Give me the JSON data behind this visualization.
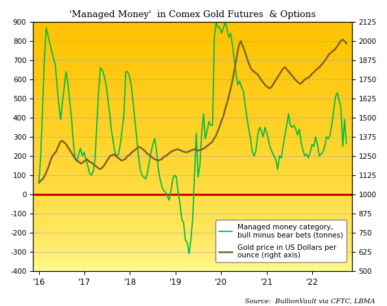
{
  "title": "'Managed Money'  in Comex Gold Futures  & Options",
  "source_text": "Source:  BullionVault via CFTC, LBMA",
  "left_ylim": [
    -400,
    900
  ],
  "right_ylim": [
    500,
    2125
  ],
  "left_yticks": [
    -400,
    -300,
    -200,
    -100,
    0,
    100,
    200,
    300,
    400,
    500,
    600,
    700,
    800,
    900
  ],
  "right_yticks": [
    500,
    625,
    750,
    875,
    1000,
    1125,
    1250,
    1375,
    1500,
    1625,
    1750,
    1875,
    2000,
    2125
  ],
  "xtick_labels": [
    "'16",
    "'17",
    "'18",
    "'19",
    "'20",
    "'21",
    "'22"
  ],
  "background_top": "#FFC200",
  "background_bottom": "#FFFF99",
  "zero_line_color": "#CC0000",
  "net_long_color": "#00BB44",
  "gold_price_color": "#7B6328",
  "net_long_linewidth": 1.3,
  "gold_price_linewidth": 1.8,
  "legend_label_net": "Managed money category,\nbull minus bear bets (tonnes)",
  "legend_label_gold": "Gold price in US Dollars per\nounce (right axis)",
  "net_long_data": [
    70,
    200,
    450,
    700,
    870,
    830,
    790,
    750,
    710,
    680,
    570,
    470,
    390,
    480,
    560,
    640,
    580,
    490,
    400,
    270,
    190,
    170,
    210,
    240,
    200,
    220,
    180,
    150,
    110,
    100,
    120,
    180,
    360,
    540,
    660,
    650,
    620,
    580,
    510,
    430,
    340,
    280,
    220,
    200,
    210,
    260,
    340,
    410,
    640,
    640,
    620,
    570,
    490,
    390,
    300,
    200,
    130,
    100,
    90,
    80,
    110,
    170,
    220,
    260,
    290,
    230,
    130,
    80,
    40,
    20,
    10,
    -10,
    -30,
    20,
    80,
    100,
    90,
    10,
    -50,
    -130,
    -150,
    -240,
    -250,
    -310,
    -240,
    -130,
    100,
    320,
    90,
    150,
    320,
    420,
    290,
    330,
    380,
    360,
    360,
    820,
    900,
    870,
    870,
    840,
    870,
    900,
    860,
    820,
    840,
    780,
    700,
    630,
    570,
    590,
    560,
    540,
    470,
    400,
    340,
    290,
    220,
    200,
    230,
    310,
    350,
    330,
    300,
    350,
    320,
    280,
    240,
    220,
    200,
    180,
    130,
    200,
    190,
    250,
    310,
    360,
    420,
    360,
    350,
    360,
    340,
    310,
    340,
    270,
    230,
    200,
    210,
    190,
    220,
    260,
    250,
    300,
    260,
    200,
    210,
    220,
    250,
    300,
    290,
    310,
    370,
    440,
    510,
    530,
    490,
    450,
    250,
    390,
    265
  ],
  "gold_price_data": [
    1075,
    1090,
    1100,
    1120,
    1150,
    1180,
    1220,
    1250,
    1265,
    1280,
    1310,
    1340,
    1350,
    1340,
    1330,
    1310,
    1290,
    1270,
    1250,
    1230,
    1220,
    1210,
    1200,
    1210,
    1220,
    1230,
    1215,
    1210,
    1200,
    1190,
    1180,
    1170,
    1165,
    1175,
    1190,
    1210,
    1230,
    1250,
    1255,
    1260,
    1250,
    1240,
    1230,
    1220,
    1225,
    1230,
    1250,
    1255,
    1270,
    1280,
    1290,
    1300,
    1310,
    1305,
    1295,
    1285,
    1270,
    1260,
    1250,
    1240,
    1230,
    1225,
    1220,
    1225,
    1230,
    1245,
    1250,
    1260,
    1270,
    1280,
    1285,
    1290,
    1295,
    1290,
    1285,
    1280,
    1275,
    1275,
    1280,
    1285,
    1290,
    1295,
    1290,
    1285,
    1290,
    1295,
    1300,
    1310,
    1320,
    1330,
    1340,
    1360,
    1380,
    1410,
    1440,
    1480,
    1510,
    1560,
    1600,
    1650,
    1700,
    1760,
    1830,
    1900,
    1970,
    2000,
    1970,
    1940,
    1900,
    1860,
    1830,
    1810,
    1800,
    1790,
    1780,
    1760,
    1740,
    1725,
    1710,
    1700,
    1690,
    1700,
    1720,
    1740,
    1760,
    1780,
    1800,
    1820,
    1830,
    1815,
    1800,
    1785,
    1770,
    1755,
    1740,
    1730,
    1720,
    1730,
    1745,
    1755,
    1760,
    1770,
    1785,
    1795,
    1810,
    1820,
    1830,
    1845,
    1860,
    1875,
    1895,
    1915,
    1925,
    1935,
    1945,
    1960,
    1980,
    2000,
    2010,
    2000,
    1985
  ]
}
